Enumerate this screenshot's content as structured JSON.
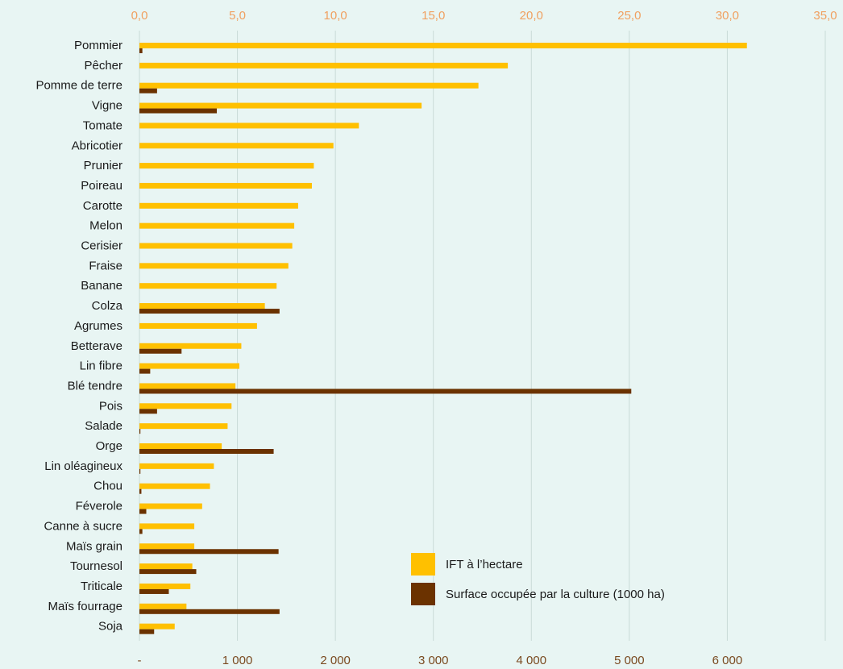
{
  "chart_data": {
    "type": "bar",
    "orientation": "horizontal",
    "title": "",
    "categories": [
      "Pommier",
      "Pêcher",
      "Pomme de terre",
      "Vigne",
      "Tomate",
      "Abricotier",
      "Prunier",
      "Poireau",
      "Carotte",
      "Melon",
      "Cerisier",
      "Fraise",
      "Banane",
      "Colza",
      "Agrumes",
      "Betterave",
      "Lin fibre",
      "Blé tendre",
      "Pois",
      "Salade",
      "Orge",
      "Lin oléagineux",
      "Chou",
      "Féverole",
      "Canne à sucre",
      "Maïs grain",
      "Tournesol",
      "Triticale",
      "Maïs fourrage",
      "Soja"
    ],
    "series": [
      {
        "name": "IFT à l’hectare",
        "axis": "top",
        "color": "#ffc000",
        "values": [
          31.0,
          18.8,
          17.3,
          14.4,
          11.2,
          9.9,
          8.9,
          8.8,
          8.1,
          7.9,
          7.8,
          7.6,
          7.0,
          6.4,
          6.0,
          5.2,
          5.1,
          4.9,
          4.7,
          4.5,
          4.2,
          3.8,
          3.6,
          3.2,
          2.8,
          2.8,
          2.7,
          2.6,
          2.4,
          1.8
        ]
      },
      {
        "name": "Surface occupée par la culture (1000 ha)",
        "axis": "bottom",
        "color": "#6b3200",
        "values": [
          30,
          0,
          180,
          790,
          0,
          0,
          0,
          0,
          0,
          0,
          0,
          0,
          0,
          1430,
          0,
          430,
          110,
          5020,
          180,
          10,
          1370,
          10,
          20,
          70,
          30,
          1420,
          580,
          300,
          1430,
          150
        ]
      }
    ],
    "top_axis": {
      "min": 0,
      "max": 35,
      "step": 5,
      "tick_labels": [
        "0,0",
        "5,0",
        "10,0",
        "15,0",
        "20,0",
        "25,0",
        "30,0",
        "35,0"
      ]
    },
    "bottom_axis": {
      "min": 0,
      "max": 7000,
      "step": 1000,
      "tick_labels": [
        "-",
        "1 000",
        "2 000",
        "3 000",
        "4 000",
        "5 000",
        "6 000"
      ]
    },
    "grid": "vertical",
    "legend": {
      "placement": "bottom-right"
    }
  }
}
